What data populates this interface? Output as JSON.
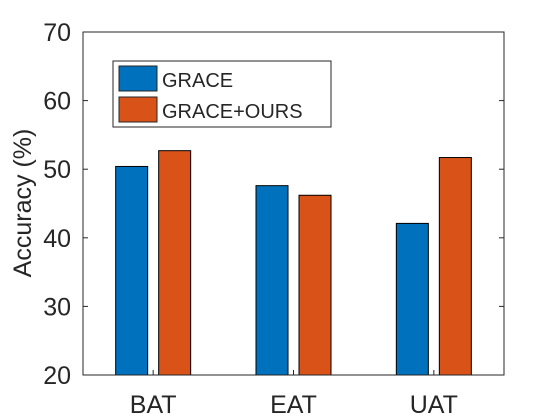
{
  "chart_data": {
    "type": "bar",
    "categories": [
      "BAT",
      "EAT",
      "UAT"
    ],
    "series": [
      {
        "name": "GRACE",
        "values": [
          50.4,
          47.6,
          42.1
        ],
        "color": "#0072BD"
      },
      {
        "name": "GRACE+OURS",
        "values": [
          52.7,
          46.2,
          51.7
        ],
        "color": "#D95319"
      }
    ],
    "ylabel": "Accuracy (%)",
    "xlabel": "",
    "ylim": [
      20,
      70
    ],
    "yticks": [
      20,
      30,
      40,
      50,
      60,
      70
    ],
    "grid": false,
    "legend_position": "top-left"
  }
}
